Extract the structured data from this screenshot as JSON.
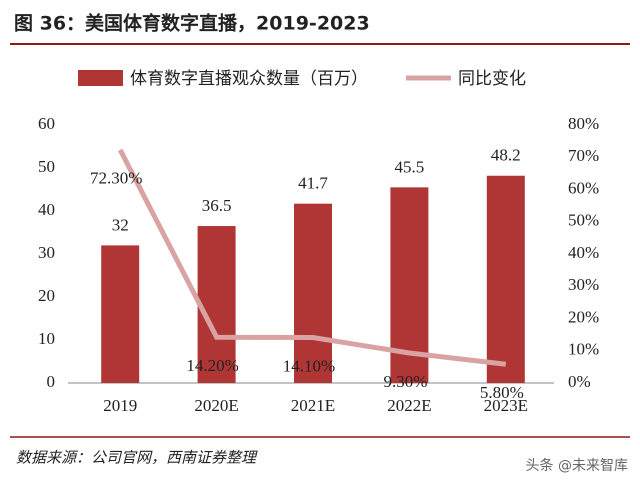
{
  "chart_data": {
    "type": "bar",
    "title": "图 36：美国体育数字直播，2019-2023",
    "categories": [
      "2019",
      "2020E",
      "2021E",
      "2022E",
      "2023E"
    ],
    "series": [
      {
        "name": "体育数字直播观众数量（百万）",
        "color": "#b03535",
        "values": [
          32,
          36.5,
          41.7,
          45.5,
          48.2
        ]
      },
      {
        "name": "同比变化",
        "color": "#d9a3a3",
        "type": "line",
        "axis": "y2",
        "values": [
          72.3,
          14.2,
          14.1,
          9.3,
          5.8
        ],
        "value_labels": [
          "72.30%",
          "14.20%",
          "14.10%",
          "9.30%",
          "5.80%"
        ]
      }
    ],
    "ylim": [
      0,
      60
    ],
    "yticks": [
      0,
      10,
      20,
      30,
      40,
      50,
      60
    ],
    "y2lim": [
      0,
      80
    ],
    "y2ticks": [
      {
        "value": 0,
        "label": "0%"
      },
      {
        "value": 10,
        "label": "10%"
      },
      {
        "value": 20,
        "label": "20%"
      },
      {
        "value": 30,
        "label": "30%"
      },
      {
        "value": 40,
        "label": "40%"
      },
      {
        "value": 50,
        "label": "50%"
      },
      {
        "value": 60,
        "label": "60%"
      },
      {
        "value": 70,
        "label": "70%"
      },
      {
        "value": 80,
        "label": "80%"
      }
    ],
    "legend": "top",
    "source": "数据来源：公司官网，西南证券整理",
    "watermark": "头条 @未来智库"
  }
}
